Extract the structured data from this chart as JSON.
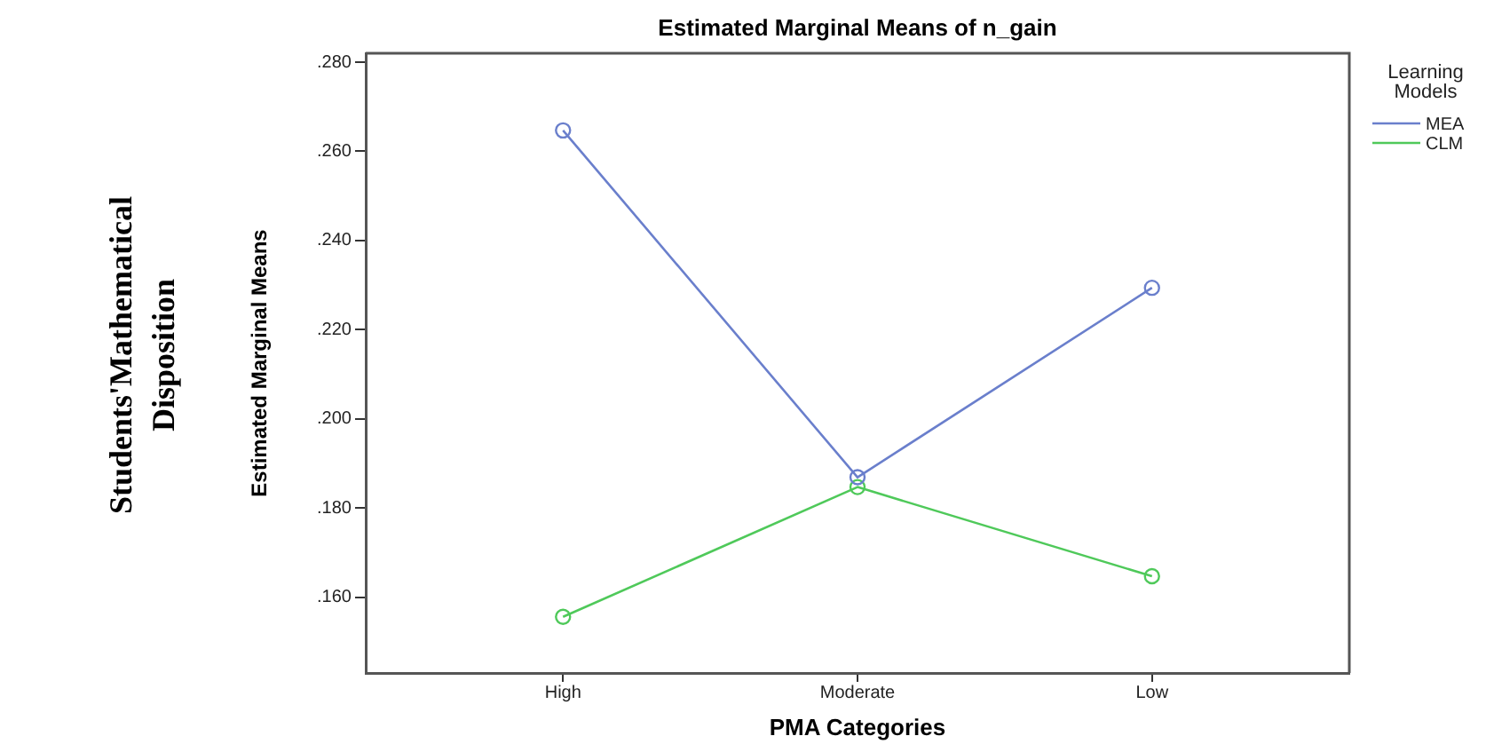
{
  "chart_data": {
    "type": "line",
    "title": "Estimated Marginal Means of n_gain",
    "xlabel": "PMA Categories",
    "ylabel": "Estimated Marginal Means",
    "legend_title": "Learning Models",
    "annotations": [
      "Students'Mathematical Disposition"
    ],
    "categories": [
      "High",
      "Moderate",
      "Low"
    ],
    "series": [
      {
        "name": "MEA",
        "color": "#6a7fcc",
        "values": [
          0.2647,
          0.1869,
          0.2294
        ]
      },
      {
        "name": "CLM",
        "color": "#4fc95a",
        "values": [
          0.1556,
          0.1847,
          0.1647
        ]
      }
    ],
    "ylim": [
      0.143,
      0.282
    ],
    "yticks": [
      {
        "value": 0.16,
        "label": ".160"
      },
      {
        "value": 0.18,
        "label": ".180"
      },
      {
        "value": 0.2,
        "label": ".200"
      },
      {
        "value": 0.22,
        "label": ".220"
      },
      {
        "value": 0.24,
        "label": ".240"
      },
      {
        "value": 0.26,
        "label": ".260"
      },
      {
        "value": 0.28,
        "label": ".280"
      }
    ],
    "grid": false,
    "legend": "top right",
    "marker": "circle",
    "line_style": "solid"
  }
}
